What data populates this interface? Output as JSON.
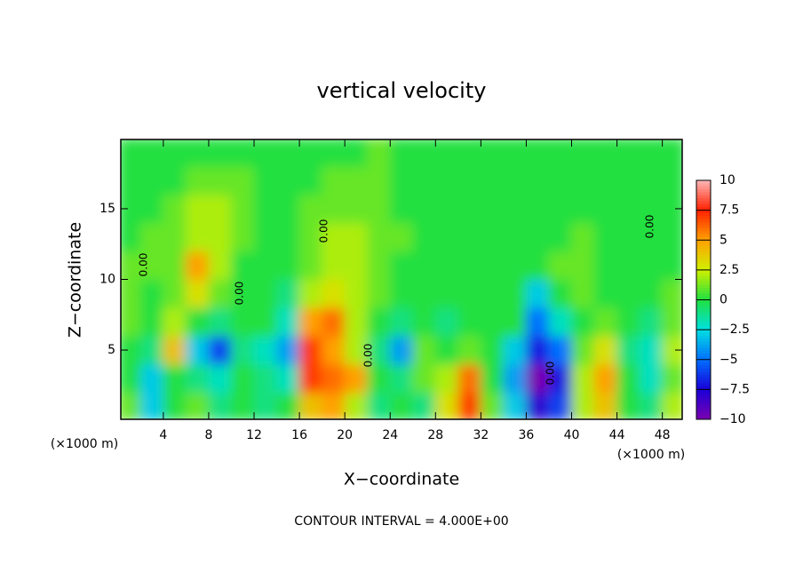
{
  "chart_data": {
    "type": "heatmap",
    "title": "vertical velocity",
    "xlabel": "X−coordinate",
    "ylabel": "Z−coordinate",
    "xunit": "(×1000 m)",
    "yunit": "(×1000 m)",
    "note": "CONTOUR INTERVAL = 4.000E+00",
    "contour_labels": [
      "0.00",
      "0.00",
      "0.00",
      "0.00",
      "0.00",
      "0.00"
    ],
    "xlim": [
      0.25,
      49.75
    ],
    "ylim": [
      0.1,
      19.9
    ],
    "xticks": [
      4,
      8,
      12,
      16,
      20,
      24,
      28,
      32,
      36,
      40,
      44,
      48
    ],
    "yticks": [
      5,
      10,
      15
    ],
    "x": [
      1,
      3,
      5,
      7,
      9,
      11,
      13,
      15,
      17,
      19,
      21,
      23,
      25,
      27,
      29,
      31,
      33,
      35,
      37,
      39,
      41,
      43,
      45,
      47,
      49
    ],
    "y": [
      1,
      3,
      5,
      7,
      9,
      11,
      13,
      15,
      17,
      19
    ],
    "z": [
      [
        1,
        -3,
        0,
        1,
        -1,
        0,
        -1,
        0,
        4,
        5,
        2,
        -1,
        0,
        -1,
        3,
        7,
        1,
        -3,
        -8,
        -6,
        2,
        4,
        0,
        -1,
        2
      ],
      [
        0,
        -3,
        0,
        -1,
        -2,
        0,
        -1,
        -2,
        7,
        6,
        5,
        0,
        -1,
        1,
        2,
        6,
        0,
        -4,
        -10,
        -7,
        2,
        5,
        0,
        -2,
        1
      ],
      [
        0,
        -1,
        4,
        -3,
        -6,
        -1,
        -2,
        -4,
        7,
        5,
        2,
        -1,
        -4,
        1,
        0,
        1,
        0,
        -3,
        -7,
        -5,
        1,
        3,
        -1,
        -2,
        2
      ],
      [
        1,
        0,
        2,
        0,
        -1,
        0,
        0,
        -2,
        5,
        6,
        2,
        0,
        -1,
        0,
        -1,
        0,
        0,
        0,
        -5,
        -2,
        0,
        1,
        0,
        -1,
        1
      ],
      [
        1,
        0,
        1,
        3,
        1,
        0,
        0,
        -1,
        2,
        3,
        2,
        1,
        0,
        0,
        0,
        0,
        0,
        0,
        -3,
        0,
        1,
        0,
        0,
        0,
        1
      ],
      [
        1,
        1,
        1,
        5,
        2,
        0,
        0,
        0,
        1,
        2,
        2,
        1,
        0,
        0,
        0,
        0,
        0,
        0,
        0,
        1,
        1,
        0,
        0,
        0,
        0
      ],
      [
        0,
        1,
        1,
        2,
        2,
        1,
        0,
        0,
        1,
        2,
        2,
        1,
        1,
        0,
        0,
        0,
        0,
        0,
        0,
        0,
        1,
        0,
        0,
        0,
        0
      ],
      [
        0,
        0,
        1,
        2,
        2,
        1,
        0,
        0,
        1,
        1,
        1,
        1,
        0,
        0,
        0,
        0,
        0,
        0,
        0,
        0,
        0,
        0,
        0,
        0,
        0
      ],
      [
        0,
        0,
        0,
        1,
        1,
        1,
        0,
        0,
        0,
        1,
        1,
        1,
        0,
        0,
        0,
        0,
        0,
        0,
        0,
        0,
        0,
        0,
        0,
        0,
        0
      ],
      [
        0,
        0,
        0,
        0,
        0,
        0,
        0,
        0,
        0,
        0,
        0,
        1,
        0,
        0,
        0,
        0,
        0,
        0,
        0,
        0,
        0,
        0,
        0,
        0,
        0
      ]
    ],
    "clim": [
      -10,
      10
    ],
    "cticks": [
      {
        "value": -10,
        "label": "−10"
      },
      {
        "value": -7.5,
        "label": "−7.5"
      },
      {
        "value": -5,
        "label": "−5"
      },
      {
        "value": -2.5,
        "label": "−2.5"
      },
      0,
      2.5,
      5,
      7.5,
      10
    ],
    "colors": [
      "#7a00b0",
      "#1a00d8",
      "#0070ff",
      "#00e0e0",
      "#20e040",
      "#d0f000",
      "#ffa000",
      "#ff2000",
      "#ffb8b8"
    ]
  }
}
